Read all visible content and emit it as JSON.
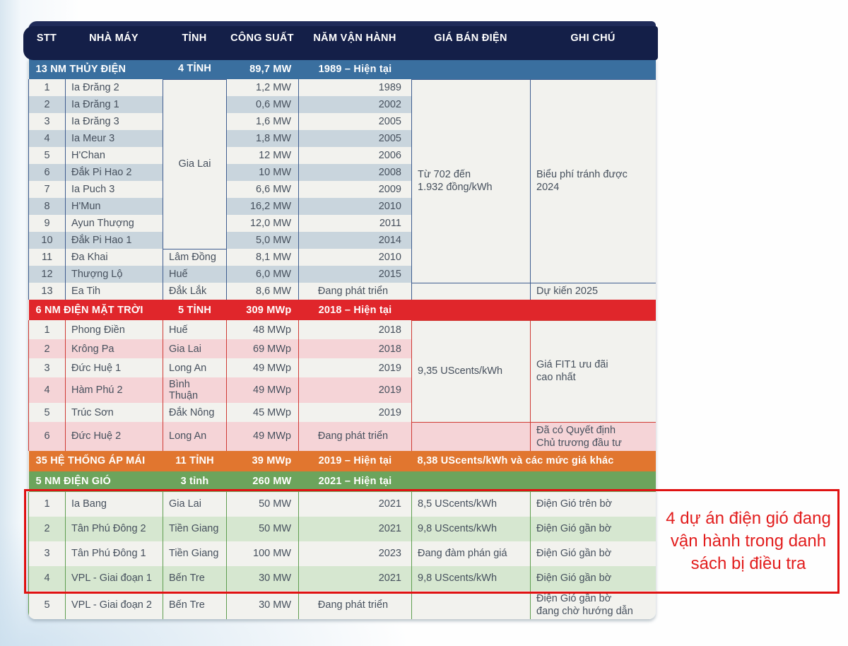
{
  "colors": {
    "navy": "#1f2b59",
    "navy_dark": "#141f48",
    "blue": "#3a6f9f",
    "red": "#e0262b",
    "orange": "#e1762f",
    "green": "#6ca45c",
    "highlight_red": "#e01212",
    "annotation_red": "#e21d1d"
  },
  "table": {
    "columns": [
      "STT",
      "NHÀ MÁY",
      "TỈNH",
      "CÔNG SUẤT",
      "NĂM VẬN HÀNH",
      "GIÁ BÁN ĐIỆN",
      "GHI CHÚ"
    ],
    "sections": [
      {
        "id": "hydro",
        "header": {
          "label": "13 NM THỦY ĐIỆN",
          "provinces": "4 TỈNH",
          "capacity": "89,7 MW",
          "years": "1989 – Hiện tại",
          "note": ""
        },
        "rows": [
          [
            {
              "c": 0,
              "t": "1"
            },
            {
              "c": 1,
              "t": "Ia Đrăng 2"
            },
            {
              "c": 2,
              "t": "Gia Lai",
              "rs": 10
            },
            {
              "c": 3,
              "t": "1,2 MW"
            },
            {
              "c": 4,
              "t": "1989"
            },
            {
              "c": 5,
              "t": "Từ 702 đến\n1.932 đồng/kWh",
              "rs": 12
            },
            {
              "c": 6,
              "t": "Biểu phí tránh được\n2024",
              "rs": 12
            }
          ],
          [
            {
              "c": 0,
              "t": "2"
            },
            {
              "c": 1,
              "t": "Ia Đrăng 1"
            },
            {
              "c": 3,
              "t": "0,6 MW"
            },
            {
              "c": 4,
              "t": "2002"
            }
          ],
          [
            {
              "c": 0,
              "t": "3"
            },
            {
              "c": 1,
              "t": "Ia Đrăng 3"
            },
            {
              "c": 3,
              "t": "1,6 MW"
            },
            {
              "c": 4,
              "t": "2005"
            }
          ],
          [
            {
              "c": 0,
              "t": "4"
            },
            {
              "c": 1,
              "t": "Ia Meur 3"
            },
            {
              "c": 3,
              "t": "1,8 MW"
            },
            {
              "c": 4,
              "t": "2005"
            }
          ],
          [
            {
              "c": 0,
              "t": "5"
            },
            {
              "c": 1,
              "t": "H'Chan"
            },
            {
              "c": 3,
              "t": "12 MW"
            },
            {
              "c": 4,
              "t": "2006"
            }
          ],
          [
            {
              "c": 0,
              "t": "6"
            },
            {
              "c": 1,
              "t": "Đắk Pi Hao 2"
            },
            {
              "c": 3,
              "t": "10 MW"
            },
            {
              "c": 4,
              "t": "2008"
            }
          ],
          [
            {
              "c": 0,
              "t": "7"
            },
            {
              "c": 1,
              "t": "Ia Puch 3"
            },
            {
              "c": 3,
              "t": "6,6 MW"
            },
            {
              "c": 4,
              "t": "2009"
            }
          ],
          [
            {
              "c": 0,
              "t": "8"
            },
            {
              "c": 1,
              "t": "H'Mun"
            },
            {
              "c": 3,
              "t": "16,2 MW"
            },
            {
              "c": 4,
              "t": "2010"
            }
          ],
          [
            {
              "c": 0,
              "t": "9"
            },
            {
              "c": 1,
              "t": "Ayun Thượng"
            },
            {
              "c": 3,
              "t": "12,0 MW"
            },
            {
              "c": 4,
              "t": "2011"
            }
          ],
          [
            {
              "c": 0,
              "t": "10"
            },
            {
              "c": 1,
              "t": "Đắk Pi Hao 1"
            },
            {
              "c": 3,
              "t": "5,0 MW"
            },
            {
              "c": 4,
              "t": "2014"
            }
          ],
          [
            {
              "c": 0,
              "t": "11"
            },
            {
              "c": 1,
              "t": "Đa Khai"
            },
            {
              "c": 2,
              "t": "Lâm Đồng"
            },
            {
              "c": 3,
              "t": "8,1 MW"
            },
            {
              "c": 4,
              "t": "2010"
            }
          ],
          [
            {
              "c": 0,
              "t": "12"
            },
            {
              "c": 1,
              "t": "Thượng Lộ"
            },
            {
              "c": 2,
              "t": "Huế"
            },
            {
              "c": 3,
              "t": "6,0 MW"
            },
            {
              "c": 4,
              "t": "2015"
            }
          ],
          [
            {
              "c": 0,
              "t": "13"
            },
            {
              "c": 1,
              "t": "Ea Tih"
            },
            {
              "c": 2,
              "t": "Đắk Lắk"
            },
            {
              "c": 3,
              "t": "8,6 MW"
            },
            {
              "c": 4,
              "t": "Đang phát triển"
            },
            {
              "c": 5,
              "t": ""
            },
            {
              "c": 6,
              "t": "Dự kiến 2025"
            }
          ]
        ]
      },
      {
        "id": "solar",
        "header": {
          "label": "6 NM ĐIỆN MẶT TRỜI",
          "provinces": "5 TỈNH",
          "capacity": "309 MWp",
          "years": "2018 – Hiện tại",
          "note": ""
        },
        "rows": [
          [
            {
              "c": 0,
              "t": "1"
            },
            {
              "c": 1,
              "t": "Phong Điền"
            },
            {
              "c": 2,
              "t": "Huế"
            },
            {
              "c": 3,
              "t": "48 MWp"
            },
            {
              "c": 4,
              "t": "2018"
            },
            {
              "c": 5,
              "t": "9,35 UScents/kWh",
              "rs": 5
            },
            {
              "c": 6,
              "t": "Giá FIT1 ưu đãi\ncao nhất",
              "rs": 5
            }
          ],
          [
            {
              "c": 0,
              "t": "2"
            },
            {
              "c": 1,
              "t": "Krông Pa"
            },
            {
              "c": 2,
              "t": "Gia Lai"
            },
            {
              "c": 3,
              "t": "69 MWp"
            },
            {
              "c": 4,
              "t": "2018"
            }
          ],
          [
            {
              "c": 0,
              "t": "3"
            },
            {
              "c": 1,
              "t": "Đức Huệ 1"
            },
            {
              "c": 2,
              "t": "Long An"
            },
            {
              "c": 3,
              "t": "49 MWp"
            },
            {
              "c": 4,
              "t": "2019"
            }
          ],
          [
            {
              "c": 0,
              "t": "4"
            },
            {
              "c": 1,
              "t": "Hàm Phú 2"
            },
            {
              "c": 2,
              "t": "Bình Thuận"
            },
            {
              "c": 3,
              "t": "49 MWp"
            },
            {
              "c": 4,
              "t": "2019"
            }
          ],
          [
            {
              "c": 0,
              "t": "5"
            },
            {
              "c": 1,
              "t": "Trúc Sơn"
            },
            {
              "c": 2,
              "t": "Đắk Nông"
            },
            {
              "c": 3,
              "t": "45 MWp"
            },
            {
              "c": 4,
              "t": "2019"
            }
          ],
          [
            {
              "c": 0,
              "t": "6"
            },
            {
              "c": 1,
              "t": "Đức Huệ 2"
            },
            {
              "c": 2,
              "t": "Long An"
            },
            {
              "c": 3,
              "t": "49 MWp"
            },
            {
              "c": 4,
              "t": "Đang phát triển"
            },
            {
              "c": 5,
              "t": ""
            },
            {
              "c": 6,
              "t": "Đã có Quyết định\nChủ trương đầu tư"
            }
          ]
        ]
      },
      {
        "id": "rooftop",
        "header": {
          "label": "35 HỆ THỐNG ÁP MÁI",
          "provinces": "11 TỈNH",
          "capacity": "39 MWp",
          "years": "2019 – Hiện tại",
          "note": "8,38 UScents/kWh và các mức giá khác"
        },
        "rows": []
      },
      {
        "id": "wind",
        "header": {
          "label": "5 NM ĐIỆN GIÓ",
          "provinces": "3 tỉnh",
          "capacity": "260 MW",
          "years": "2021 – Hiện tại",
          "note": ""
        },
        "rows": [
          [
            {
              "c": 0,
              "t": "1"
            },
            {
              "c": 1,
              "t": "Ia Bang"
            },
            {
              "c": 2,
              "t": "Gia Lai"
            },
            {
              "c": 3,
              "t": "50 MW"
            },
            {
              "c": 4,
              "t": "2021"
            },
            {
              "c": 5,
              "t": "8,5 UScents/kWh"
            },
            {
              "c": 6,
              "t": "Điện Gió trên bờ"
            }
          ],
          [
            {
              "c": 0,
              "t": "2"
            },
            {
              "c": 1,
              "t": "Tân Phú Đông 2"
            },
            {
              "c": 2,
              "t": "Tiền Giang"
            },
            {
              "c": 3,
              "t": "50 MW"
            },
            {
              "c": 4,
              "t": "2021"
            },
            {
              "c": 5,
              "t": "9,8 UScents/kWh"
            },
            {
              "c": 6,
              "t": "Điện Gió gần bờ"
            }
          ],
          [
            {
              "c": 0,
              "t": "3"
            },
            {
              "c": 1,
              "t": "Tân Phú Đông 1"
            },
            {
              "c": 2,
              "t": "Tiền Giang"
            },
            {
              "c": 3,
              "t": "100 MW"
            },
            {
              "c": 4,
              "t": "2023"
            },
            {
              "c": 5,
              "t": "Đang đàm phán giá"
            },
            {
              "c": 6,
              "t": "Điện Gió gần bờ"
            }
          ],
          [
            {
              "c": 0,
              "t": "4"
            },
            {
              "c": 1,
              "t": "VPL - Giai đoạn 1"
            },
            {
              "c": 2,
              "t": "Bến Tre"
            },
            {
              "c": 3,
              "t": "30 MW"
            },
            {
              "c": 4,
              "t": "2021"
            },
            {
              "c": 5,
              "t": "9,8 UScents/kWh"
            },
            {
              "c": 6,
              "t": "Điện Gió gần bờ"
            }
          ],
          [
            {
              "c": 0,
              "t": "5"
            },
            {
              "c": 1,
              "t": "VPL - Giai đoạn 2"
            },
            {
              "c": 2,
              "t": "Bến Tre"
            },
            {
              "c": 3,
              "t": "30 MW"
            },
            {
              "c": 4,
              "t": "Đang phát triển"
            },
            {
              "c": 5,
              "t": ""
            },
            {
              "c": 6,
              "t": "Điện Gió gần bờ\nđang chờ hướng dẫn"
            }
          ]
        ]
      }
    ]
  },
  "annotation": {
    "text": "4 dự án điện gió đang vận hành trong danh sách bị điều tra"
  }
}
